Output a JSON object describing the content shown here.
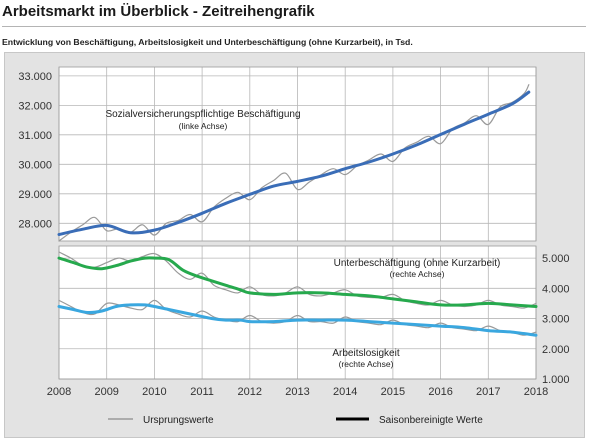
{
  "page": {
    "title": "Arbeitsmarkt im Überblick - Zeitreihengrafik",
    "subtitle": "Entwicklung von Beschäftigung, Arbeitslosigkeit und Unterbeschäftigung (ohne Kurzarbeit), in Tsd."
  },
  "colors": {
    "employment": "#3a6db7",
    "underemployment": "#26a94d",
    "unemployment": "#3aa7df",
    "original": "#9a9a9a",
    "legend_trend": "#000000"
  },
  "chart_data": {
    "type": "line",
    "x_ticks": [
      "2008",
      "2009",
      "2010",
      "2011",
      "2012",
      "2013",
      "2014",
      "2015",
      "2016",
      "2017",
      "2018"
    ],
    "xlim": [
      2008,
      2018
    ],
    "top_panel": {
      "axis": "left",
      "ylim": [
        27400,
        33300
      ],
      "y_ticks": [
        "28.000",
        "29.000",
        "30.000",
        "31.000",
        "32.000",
        "33.000"
      ],
      "y_tick_values": [
        28000,
        29000,
        30000,
        31000,
        32000,
        33000
      ],
      "label": "Sozialversicherungspflichtige Beschäftigung",
      "label_sub": "(linke Achse)",
      "series": [
        {
          "role": "seasonally_adjusted",
          "color_key": "employment",
          "x": [
            2008.0,
            2008.5,
            2009.0,
            2009.5,
            2010.0,
            2010.5,
            2011.0,
            2011.5,
            2012.0,
            2012.5,
            2013.0,
            2013.5,
            2014.0,
            2014.5,
            2015.0,
            2015.5,
            2016.0,
            2016.5,
            2017.0,
            2017.5,
            2017.85
          ],
          "values": [
            27620,
            27800,
            27930,
            27680,
            27770,
            28030,
            28340,
            28680,
            28980,
            29260,
            29420,
            29600,
            29850,
            30080,
            30350,
            30660,
            31010,
            31360,
            31700,
            32050,
            32450
          ]
        },
        {
          "role": "original",
          "color_key": "original",
          "x": [
            2008.0,
            2008.25,
            2008.5,
            2008.75,
            2009.0,
            2009.25,
            2009.5,
            2009.75,
            2010.0,
            2010.25,
            2010.5,
            2010.75,
            2011.0,
            2011.25,
            2011.5,
            2011.75,
            2012.0,
            2012.25,
            2012.5,
            2012.75,
            2013.0,
            2013.25,
            2013.5,
            2013.75,
            2014.0,
            2014.25,
            2014.5,
            2014.75,
            2015.0,
            2015.25,
            2015.5,
            2015.75,
            2016.0,
            2016.25,
            2016.5,
            2016.75,
            2017.0,
            2017.25,
            2017.5,
            2017.75,
            2017.85
          ],
          "values": [
            27400,
            27700,
            27950,
            28200,
            27750,
            27820,
            27700,
            27950,
            27600,
            28000,
            28100,
            28300,
            28050,
            28550,
            28850,
            29050,
            28800,
            29200,
            29450,
            29700,
            29150,
            29400,
            29650,
            29850,
            29650,
            29950,
            30150,
            30350,
            30100,
            30550,
            30750,
            30950,
            30700,
            31200,
            31400,
            31650,
            31350,
            31950,
            32100,
            32400,
            32700
          ]
        }
      ]
    },
    "bottom_panel": {
      "axis": "right",
      "ylim": [
        1000,
        5400
      ],
      "y_ticks": [
        "1.000",
        "2.000",
        "3.000",
        "4.000",
        "5.000"
      ],
      "y_tick_values": [
        1000,
        2000,
        3000,
        4000,
        5000
      ],
      "series": [
        {
          "name": "Unterbeschäftigung (ohne Kurzarbeit)",
          "axis_note": "(rechte Achse)",
          "role": "seasonally_adjusted",
          "color_key": "underemployment",
          "x": [
            2008.0,
            2008.3,
            2008.6,
            2008.9,
            2009.2,
            2009.5,
            2009.8,
            2010.0,
            2010.3,
            2010.6,
            2010.9,
            2011.2,
            2011.5,
            2011.8,
            2012.0,
            2012.5,
            2013.0,
            2013.5,
            2014.0,
            2014.5,
            2015.0,
            2015.5,
            2016.0,
            2016.5,
            2017.0,
            2017.5,
            2018.0
          ],
          "values": [
            5000,
            4850,
            4700,
            4650,
            4750,
            4900,
            5000,
            5000,
            4950,
            4600,
            4400,
            4250,
            4100,
            3950,
            3850,
            3800,
            3850,
            3850,
            3800,
            3750,
            3650,
            3550,
            3450,
            3450,
            3500,
            3450,
            3400
          ]
        },
        {
          "name": "",
          "role": "original",
          "color_key": "original",
          "x": [
            2008.0,
            2008.25,
            2008.5,
            2008.75,
            2009.0,
            2009.25,
            2009.5,
            2009.75,
            2010.0,
            2010.25,
            2010.5,
            2010.75,
            2011.0,
            2011.25,
            2011.5,
            2011.75,
            2012.0,
            2012.25,
            2012.5,
            2012.75,
            2013.0,
            2013.25,
            2013.5,
            2013.75,
            2014.0,
            2014.25,
            2014.5,
            2014.75,
            2015.0,
            2015.25,
            2015.5,
            2015.75,
            2016.0,
            2016.25,
            2016.5,
            2016.75,
            2017.0,
            2017.25,
            2017.5,
            2017.75,
            2018.0
          ],
          "values": [
            5200,
            5000,
            4750,
            4700,
            4850,
            5000,
            4900,
            5050,
            5150,
            4900,
            4500,
            4300,
            4500,
            4100,
            3950,
            3850,
            4050,
            3800,
            3750,
            3850,
            4050,
            3800,
            3750,
            3850,
            3950,
            3750,
            3700,
            3700,
            3800,
            3600,
            3500,
            3450,
            3600,
            3450,
            3400,
            3450,
            3600,
            3450,
            3400,
            3350,
            3500
          ]
        },
        {
          "name": "Arbeitslosigkeit",
          "axis_note": "(rechte Achse)",
          "role": "seasonally_adjusted",
          "color_key": "unemployment",
          "x": [
            2008.0,
            2008.3,
            2008.6,
            2008.9,
            2009.2,
            2009.5,
            2009.8,
            2010.0,
            2010.3,
            2010.6,
            2010.9,
            2011.2,
            2011.5,
            2011.8,
            2012.0,
            2012.5,
            2013.0,
            2013.5,
            2014.0,
            2014.5,
            2015.0,
            2015.5,
            2016.0,
            2016.5,
            2017.0,
            2017.5,
            2018.0
          ],
          "values": [
            3400,
            3300,
            3200,
            3250,
            3400,
            3450,
            3450,
            3400,
            3300,
            3200,
            3100,
            3000,
            2950,
            2950,
            2900,
            2900,
            2950,
            2950,
            2950,
            2900,
            2850,
            2800,
            2750,
            2700,
            2600,
            2550,
            2450
          ]
        },
        {
          "name": "",
          "role": "original",
          "color_key": "original",
          "x": [
            2008.0,
            2008.25,
            2008.5,
            2008.75,
            2009.0,
            2009.25,
            2009.5,
            2009.75,
            2010.0,
            2010.25,
            2010.5,
            2010.75,
            2011.0,
            2011.25,
            2011.5,
            2011.75,
            2012.0,
            2012.25,
            2012.5,
            2012.75,
            2013.0,
            2013.25,
            2013.5,
            2013.75,
            2014.0,
            2014.25,
            2014.5,
            2014.75,
            2015.0,
            2015.25,
            2015.5,
            2015.75,
            2016.0,
            2016.25,
            2016.5,
            2016.75,
            2017.0,
            2017.25,
            2017.5,
            2017.75,
            2018.0
          ],
          "values": [
            3600,
            3400,
            3200,
            3150,
            3500,
            3450,
            3350,
            3300,
            3600,
            3300,
            3150,
            3050,
            3250,
            3050,
            2950,
            2900,
            3100,
            2900,
            2850,
            2900,
            3100,
            2900,
            2900,
            2850,
            3050,
            2900,
            2850,
            2800,
            2950,
            2800,
            2750,
            2700,
            2850,
            2700,
            2650,
            2600,
            2750,
            2600,
            2550,
            2450,
            2550
          ]
        }
      ]
    },
    "legend": [
      {
        "label": "Ursprungswerte",
        "style": "thin",
        "color_key": "original"
      },
      {
        "label": "Saisonbereinigte Werte",
        "style": "thick",
        "color_key": "legend_trend"
      }
    ]
  }
}
